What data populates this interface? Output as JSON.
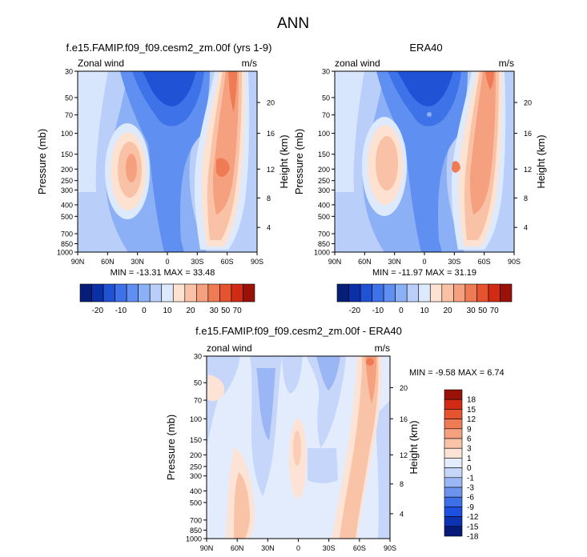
{
  "figure_title": "ANN",
  "colors": {
    "abs_scale": [
      "#061e78",
      "#0a2fa6",
      "#2052d6",
      "#3e72e8",
      "#5f8ff0",
      "#8cb0f5",
      "#b9cffa",
      "#ddeafd",
      "#fde2d2",
      "#f9c2a6",
      "#f5a07e",
      "#ef7b55",
      "#e5532f",
      "#d12a15",
      "#9a1108"
    ],
    "diff_scale": [
      "#061a7a",
      "#0d33b3",
      "#1d4fe0",
      "#3c6fe8",
      "#6d93ef",
      "#9bb6f4",
      "#c5d6fa",
      "#e2ecfd",
      "#fde3d5",
      "#f9c3a8",
      "#f5a07f",
      "#ef7b55",
      "#e5532f",
      "#d12a15",
      "#9a1108"
    ]
  },
  "chart_data": [
    {
      "type": "heatmap",
      "title": "f.e15.FAMIP.f09_f09.cesm2_zm.00f (yrs 1-9)",
      "left_label": "Zonal wind",
      "right_label": "m/s",
      "ylabel": "Pressure (mb)",
      "ylabel_right": "Height (km)",
      "x_ticks": [
        "90N",
        "60N",
        "30N",
        "0",
        "30S",
        "60S",
        "90S"
      ],
      "y_ticks": [
        "30",
        "50",
        "70",
        "100",
        "150",
        "200",
        "250",
        "300",
        "400",
        "500",
        "700",
        "850",
        "1000"
      ],
      "height_ticks": [
        "20",
        "16",
        "12",
        "8",
        "4"
      ],
      "stats": "MIN = -13.31  MAX = 33.48",
      "colorbar_labels": [
        "-20",
        "-10",
        "0",
        "10",
        "20",
        "30",
        "50",
        "70"
      ]
    },
    {
      "type": "heatmap",
      "title": "ERA40",
      "left_label": "zonal wind",
      "right_label": "m/s",
      "ylabel": "Pressure (mb)",
      "ylabel_right": "Height (km)",
      "x_ticks": [
        "90N",
        "60N",
        "30N",
        "0",
        "30S",
        "60S",
        "90S"
      ],
      "y_ticks": [
        "30",
        "50",
        "70",
        "100",
        "150",
        "200",
        "250",
        "300",
        "400",
        "500",
        "700",
        "850",
        "1000"
      ],
      "height_ticks": [
        "20",
        "16",
        "12",
        "8",
        "4"
      ],
      "stats": "MIN = -11.97  MAX =  31.19",
      "colorbar_labels": [
        "-20",
        "-10",
        "0",
        "10",
        "20",
        "30",
        "50",
        "70"
      ]
    },
    {
      "type": "heatmap",
      "title": "f.e15.FAMIP.f09_f09.cesm2_zm.00f - ERA40",
      "left_label": "zonal wind",
      "right_label": "m/s",
      "ylabel": "Pressure (mb)",
      "ylabel_right": "Height (km)",
      "x_ticks": [
        "90N",
        "60N",
        "30N",
        "0",
        "30S",
        "60S",
        "90S"
      ],
      "y_ticks": [
        "30",
        "50",
        "70",
        "100",
        "150",
        "200",
        "250",
        "300",
        "400",
        "500",
        "700",
        "850",
        "1000"
      ],
      "height_ticks": [
        "20",
        "16",
        "12",
        "8",
        "4"
      ],
      "stats": "MIN =  -9.58  MAX =   6.74",
      "colorbar_labels": [
        "18",
        "15",
        "12",
        "9",
        "6",
        "3",
        "1",
        "0",
        "-1",
        "-3",
        "-6",
        "-9",
        "-12",
        "-15",
        "-18"
      ]
    }
  ]
}
